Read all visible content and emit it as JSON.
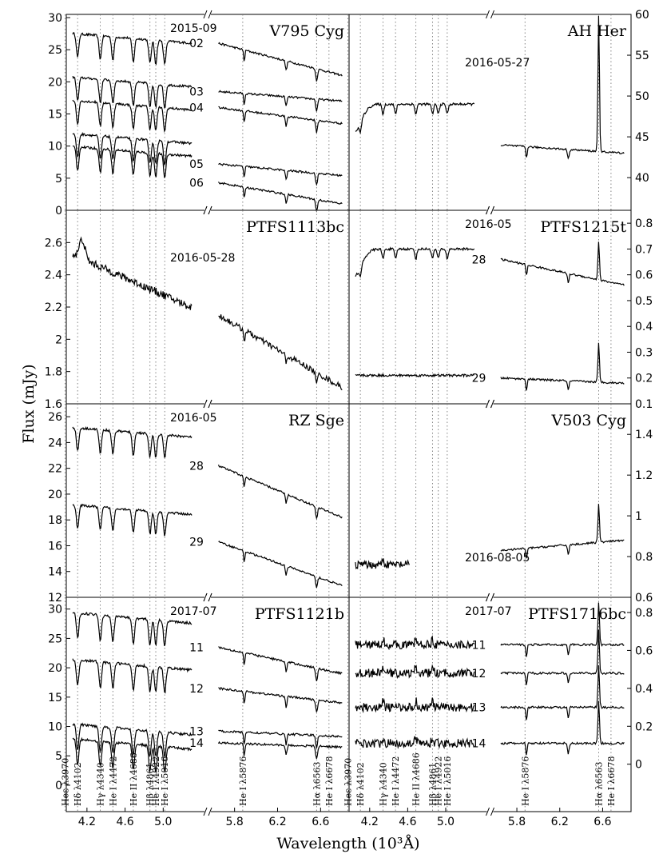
{
  "figure": {
    "xlabel": "Wavelength (10$^3$Å)",
    "xlabel_display": "Wavelength (10³Å)",
    "ylabel": "Flux (mJy)"
  },
  "chart_data": [
    {
      "type": "line",
      "name": "V795 Cyg",
      "date": "2015-09",
      "ylim": [
        0,
        30.5
      ],
      "yticks": [
        0,
        5,
        10,
        15,
        20,
        25,
        30
      ],
      "side": "left",
      "series": [
        {
          "name": "02",
          "blue_level": 27.6,
          "red_start": 26.0,
          "red_end": 21.0,
          "shape": "hot"
        },
        {
          "name": "03",
          "blue_level": 20.8,
          "red_start": 18.5,
          "red_end": 17.0,
          "shape": "hot"
        },
        {
          "name": "04",
          "blue_level": 17.2,
          "red_start": 16.0,
          "red_end": 13.5,
          "shape": "hot"
        },
        {
          "name": "05",
          "blue_level": 12.0,
          "red_start": 7.2,
          "red_end": 5.4,
          "shape": "hot"
        },
        {
          "name": "06",
          "blue_level": 10.0,
          "red_start": 4.3,
          "red_end": 1.0,
          "shape": "hot"
        }
      ]
    },
    {
      "type": "line",
      "name": "AH Her",
      "date": "2016-05-27",
      "ylim": [
        36,
        60
      ],
      "yticks": [
        40,
        45,
        50,
        55,
        60
      ],
      "side": "right",
      "series": [
        {
          "name": "",
          "blue_level": 49.0,
          "red_start": 44.0,
          "red_end": 43.0,
          "shape": "warm"
        }
      ]
    },
    {
      "type": "line",
      "name": "PTFS1113bc",
      "date": "2016-05-28",
      "ylim": [
        1.6,
        2.8
      ],
      "yticks": [
        1.6,
        1.8,
        2.0,
        2.2,
        2.4,
        2.6
      ],
      "side": "left",
      "series": [
        {
          "name": "",
          "blue_level": 2.5,
          "red_start": 2.15,
          "red_end": 1.7,
          "shape": "noisy"
        }
      ]
    },
    {
      "type": "line",
      "name": "PTFS1215t",
      "date": "2016-05",
      "ylim": [
        0.1,
        0.85
      ],
      "yticks": [
        0.1,
        0.2,
        0.3,
        0.4,
        0.5,
        0.6,
        0.7,
        0.8
      ],
      "side": "right",
      "series": [
        {
          "name": "28",
          "blue_level": 0.7,
          "red_start": 0.66,
          "red_end": 0.56,
          "shape": "warm"
        },
        {
          "name": "29",
          "blue_level": 0.21,
          "red_start": 0.2,
          "red_end": 0.18,
          "shape": "flat"
        }
      ]
    },
    {
      "type": "line",
      "name": "RZ Sge",
      "date": "2016-05",
      "ylim": [
        12,
        27
      ],
      "yticks": [
        12,
        14,
        16,
        18,
        20,
        22,
        24,
        26
      ],
      "side": "left",
      "series": [
        {
          "name": "28",
          "blue_level": 25.2,
          "red_start": 22.2,
          "red_end": 18.2,
          "shape": "hot"
        },
        {
          "name": "29",
          "blue_level": 19.2,
          "red_start": 16.3,
          "red_end": 12.9,
          "shape": "hot"
        }
      ]
    },
    {
      "type": "line",
      "name": "V503 Cyg",
      "date": "2016-08-05",
      "ylim": [
        0.6,
        1.55
      ],
      "yticks": [
        0.6,
        0.8,
        1.0,
        1.2,
        1.4
      ],
      "side": "right",
      "series": [
        {
          "name": "",
          "blue_level": 0.76,
          "red_start": 0.83,
          "red_end": 0.88,
          "shape": "emission"
        }
      ]
    },
    {
      "type": "line",
      "name": "PTFS1121b",
      "date": "2017-07",
      "ylim": [
        -4.5,
        32
      ],
      "yticks": [
        0,
        5,
        10,
        15,
        20,
        25,
        30
      ],
      "side": "left",
      "series": [
        {
          "name": "11",
          "blue_level": 29.5,
          "red_start": 23.5,
          "red_end": 19.0,
          "shape": "hot"
        },
        {
          "name": "12",
          "blue_level": 21.5,
          "red_start": 16.5,
          "red_end": 14.0,
          "shape": "hot"
        },
        {
          "name": "13",
          "blue_level": 10.5,
          "red_start": 9.2,
          "red_end": 8.3,
          "shape": "hot"
        },
        {
          "name": "14",
          "blue_level": 8.0,
          "red_start": 7.2,
          "red_end": 6.5,
          "shape": "hot"
        }
      ]
    },
    {
      "type": "line",
      "name": "PTFS1716bc",
      "date": "2017-07",
      "ylim": [
        -0.25,
        0.88
      ],
      "yticks": [
        0.0,
        0.2,
        0.4,
        0.6,
        0.8
      ],
      "side": "right",
      "series": [
        {
          "name": "11",
          "blue_level": 0.63,
          "red_start": 0.63,
          "red_end": 0.63,
          "shape": "emission"
        },
        {
          "name": "12",
          "blue_level": 0.48,
          "red_start": 0.48,
          "red_end": 0.48,
          "shape": "emission"
        },
        {
          "name": "13",
          "blue_level": 0.3,
          "red_start": 0.3,
          "red_end": 0.3,
          "shape": "emission"
        },
        {
          "name": "14",
          "blue_level": 0.11,
          "red_start": 0.11,
          "red_end": 0.11,
          "shape": "emission"
        }
      ]
    }
  ],
  "xaxis": {
    "blue_range": [
      4.0,
      5.45
    ],
    "red_range": [
      5.55,
      6.85
    ],
    "blue_ticks": [
      "4.2",
      "4.6",
      "5.0"
    ],
    "red_ticks": [
      "5.8",
      "6.2",
      "6.6"
    ]
  },
  "lines": [
    {
      "label": "He λ3970",
      "wl": 3.97
    },
    {
      "label": "Hδ λ4102",
      "wl": 4.102
    },
    {
      "label": "Hγ λ4340",
      "wl": 4.34
    },
    {
      "label": "He I λ4472",
      "wl": 4.472
    },
    {
      "label": "He II λ4686",
      "wl": 4.686
    },
    {
      "label": "Hβ λ4861",
      "wl": 4.861
    },
    {
      "label": "He I λ4922",
      "wl": 4.922
    },
    {
      "label": "He I λ5016",
      "wl": 5.016
    },
    {
      "label": "He I λ5876",
      "wl": 5.876
    },
    {
      "label": "Hα λ6563",
      "wl": 6.563
    },
    {
      "label": "He I λ6678",
      "wl": 6.678
    }
  ],
  "line_label_text": {
    "left": [
      "Heε λ3970",
      "Hδ λ4102",
      "Hγ λ4340",
      "He I λ4472",
      "He II λ4686",
      "Hβ λ4861",
      "He I λ4922",
      "He I λ5016",
      "He I λ5876",
      "Hα λ6563",
      "He I λ6678"
    ],
    "right": [
      "Heε λ3970",
      "Hδ λ4102",
      "Hγ λ4340",
      "He I λ4472",
      "He II λ4686",
      "Hβ λ4861",
      "He I λ4922",
      "He I λ5016",
      "He I λ5876",
      "Hα λ6563",
      "He I λ6678"
    ]
  }
}
